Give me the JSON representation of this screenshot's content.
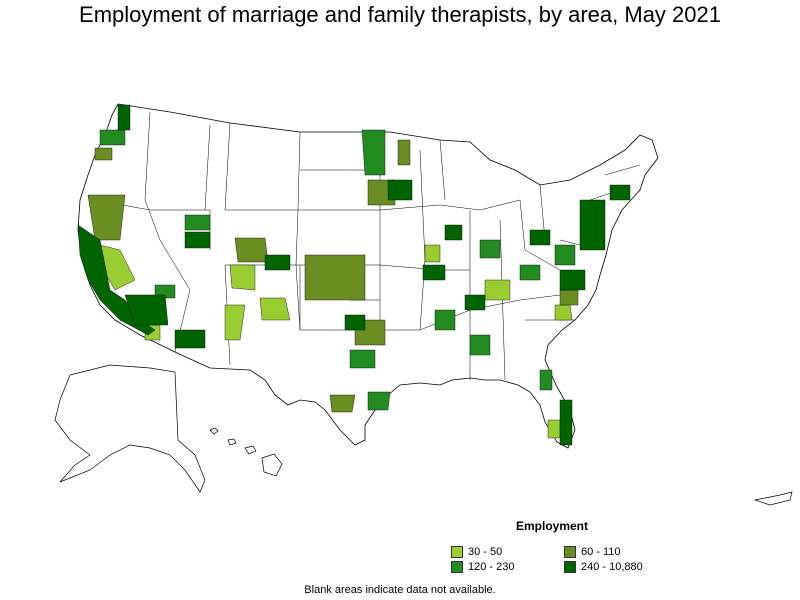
{
  "title": "Employment of marriage and family therapists, by area, May 2021",
  "legend": {
    "title": "Employment",
    "items": [
      {
        "label": "30 - 50",
        "color": "#9acd32"
      },
      {
        "label": "60 - 110",
        "color": "#6b8e23"
      },
      {
        "label": "120 - 230",
        "color": "#228b22"
      },
      {
        "label": "240 - 10,880",
        "color": "#006400"
      }
    ]
  },
  "footnote": "Blank areas indicate data not available."
}
